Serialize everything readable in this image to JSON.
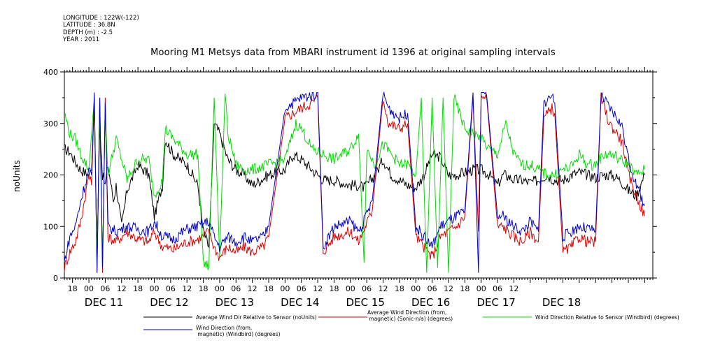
{
  "header": {
    "longitude": "LONGITUDE : 122W(-122)",
    "latitude": "LATITUDE : 36.8N",
    "depth": "DEPTH (m) : -2.5",
    "year": "YEAR : 2011"
  },
  "chart_data": {
    "type": "line",
    "title": "Mooring M1 Metsys data from MBARI instrument id 1396 at original sampling intervals",
    "ylabel": "noUnits",
    "xlabel": "",
    "ylim": [
      0,
      400
    ],
    "yticks": [
      0,
      100,
      200,
      300,
      400
    ],
    "xlim_hours": [
      -9,
      207
    ],
    "hour_ticks": [
      "18",
      "00",
      "06",
      "12",
      "18",
      "00",
      "06",
      "12",
      "18",
      "00",
      "06",
      "12",
      "18",
      "00",
      "06",
      "12",
      "18",
      "00",
      "06",
      "12",
      "18",
      "00",
      "06",
      "12",
      "18",
      "00",
      "06",
      "12"
    ],
    "day_labels": [
      "DEC 11",
      "DEC 12",
      "DEC 13",
      "DEC 14",
      "DEC 15",
      "DEC 16",
      "DEC 17",
      "DEC 18"
    ],
    "grid": false,
    "legend_placement": "bottom",
    "series": [
      {
        "name": "Average Wind Dir Relative to Sensor (noUnits)",
        "color": "#000000",
        "values": [
          [
            -9,
            250
          ],
          [
            -7,
            245
          ],
          [
            -5,
            225
          ],
          [
            -3,
            210
          ],
          [
            0,
            200
          ],
          [
            1,
            210
          ],
          [
            2,
            340
          ],
          [
            3,
            40
          ],
          [
            4,
            300
          ],
          [
            5,
            200
          ],
          [
            6,
            180
          ],
          [
            7,
            220
          ],
          [
            9,
            150
          ],
          [
            10,
            180
          ],
          [
            12,
            100
          ],
          [
            14,
            170
          ],
          [
            18,
            220
          ],
          [
            22,
            200
          ],
          [
            24,
            120
          ],
          [
            27,
            180
          ],
          [
            28,
            270
          ],
          [
            31,
            240
          ],
          [
            36,
            220
          ],
          [
            40,
            180
          ],
          [
            42,
            90
          ],
          [
            44,
            60
          ],
          [
            46,
            300
          ],
          [
            48,
            280
          ],
          [
            51,
            230
          ],
          [
            54,
            210
          ],
          [
            57,
            200
          ],
          [
            60,
            180
          ],
          [
            66,
            200
          ],
          [
            72,
            210
          ],
          [
            75,
            240
          ],
          [
            78,
            230
          ],
          [
            82,
            210
          ],
          [
            86,
            190
          ],
          [
            90,
            190
          ],
          [
            96,
            180
          ],
          [
            99,
            180
          ],
          [
            101,
            175
          ],
          [
            102,
            180
          ],
          [
            105,
            200
          ],
          [
            108,
            230
          ],
          [
            111,
            200
          ],
          [
            114,
            190
          ],
          [
            117,
            180
          ],
          [
            120,
            175
          ],
          [
            123,
            200
          ],
          [
            126,
            240
          ],
          [
            129,
            235
          ],
          [
            132,
            200
          ],
          [
            135,
            200
          ],
          [
            138,
            205
          ],
          [
            141,
            210
          ],
          [
            144,
            210
          ],
          [
            147,
            200
          ],
          [
            150,
            180
          ],
          [
            152,
            200
          ],
          [
            153,
            200
          ],
          [
            156,
            190
          ],
          [
            159,
            190
          ],
          [
            162,
            185
          ],
          [
            165,
            190
          ],
          [
            168,
            200
          ],
          [
            171,
            190
          ],
          [
            174,
            190
          ],
          [
            177,
            200
          ],
          [
            180,
            205
          ],
          [
            183,
            200
          ],
          [
            186,
            195
          ],
          [
            189,
            200
          ],
          [
            192,
            200
          ],
          [
            195,
            190
          ],
          [
            198,
            170
          ],
          [
            201,
            160
          ],
          [
            204,
            200
          ]
        ]
      },
      {
        "name": "Average Wind Direction (from, magnetic) (Sonic-n/a) (degrees)",
        "color": "#dd0000",
        "values": [
          [
            -9,
            20
          ],
          [
            -7,
            50
          ],
          [
            -5,
            70
          ],
          [
            -3,
            110
          ],
          [
            0,
            200
          ],
          [
            1,
            180
          ],
          [
            2,
            350
          ],
          [
            3,
            10
          ],
          [
            4,
            350
          ],
          [
            5,
            10
          ],
          [
            6,
            350
          ],
          [
            7,
            80
          ],
          [
            10,
            70
          ],
          [
            14,
            90
          ],
          [
            18,
            75
          ],
          [
            22,
            70
          ],
          [
            24,
            90
          ],
          [
            27,
            60
          ],
          [
            28,
            60
          ],
          [
            31,
            55
          ],
          [
            36,
            70
          ],
          [
            40,
            75
          ],
          [
            44,
            90
          ],
          [
            46,
            60
          ],
          [
            48,
            40
          ],
          [
            51,
            60
          ],
          [
            54,
            50
          ],
          [
            57,
            60
          ],
          [
            60,
            50
          ],
          [
            64,
            60
          ],
          [
            66,
            80
          ],
          [
            72,
            310
          ],
          [
            78,
            330
          ],
          [
            82,
            340
          ],
          [
            84,
            350
          ],
          [
            86,
            50
          ],
          [
            90,
            80
          ],
          [
            96,
            90
          ],
          [
            99,
            70
          ],
          [
            101,
            95
          ],
          [
            104,
            130
          ],
          [
            108,
            350
          ],
          [
            110,
            300
          ],
          [
            114,
            290
          ],
          [
            117,
            300
          ],
          [
            120,
            80
          ],
          [
            123,
            60
          ],
          [
            126,
            40
          ],
          [
            129,
            80
          ],
          [
            132,
            90
          ],
          [
            135,
            100
          ],
          [
            138,
            120
          ],
          [
            141,
            350
          ],
          [
            143,
            90
          ],
          [
            144,
            350
          ],
          [
            146,
            350
          ],
          [
            150,
            100
          ],
          [
            152,
            100
          ],
          [
            156,
            80
          ],
          [
            159,
            70
          ],
          [
            162,
            90
          ],
          [
            165,
            70
          ],
          [
            167,
            310
          ],
          [
            170,
            330
          ],
          [
            171,
            320
          ],
          [
            174,
            50
          ],
          [
            177,
            60
          ],
          [
            180,
            80
          ],
          [
            183,
            70
          ],
          [
            186,
            70
          ],
          [
            188,
            350
          ],
          [
            191,
            300
          ],
          [
            194,
            280
          ],
          [
            196,
            260
          ],
          [
            198,
            200
          ],
          [
            201,
            160
          ],
          [
            204,
            120
          ]
        ]
      },
      {
        "name": "Wind Direction Relative to Sensor (Windbird) (degrees)",
        "color": "#00dd00",
        "values": [
          [
            -9,
            320
          ],
          [
            -7,
            280
          ],
          [
            -5,
            270
          ],
          [
            -3,
            240
          ],
          [
            0,
            210
          ],
          [
            2,
            350
          ],
          [
            3,
            30
          ],
          [
            4,
            330
          ],
          [
            5,
            40
          ],
          [
            6,
            320
          ],
          [
            7,
            200
          ],
          [
            10,
            270
          ],
          [
            14,
            190
          ],
          [
            18,
            230
          ],
          [
            22,
            230
          ],
          [
            24,
            160
          ],
          [
            27,
            190
          ],
          [
            28,
            290
          ],
          [
            31,
            270
          ],
          [
            36,
            240
          ],
          [
            40,
            240
          ],
          [
            42,
            30
          ],
          [
            44,
            20
          ],
          [
            46,
            350
          ],
          [
            48,
            40
          ],
          [
            50,
            360
          ],
          [
            51,
            280
          ],
          [
            54,
            220
          ],
          [
            57,
            210
          ],
          [
            60,
            210
          ],
          [
            66,
            220
          ],
          [
            72,
            230
          ],
          [
            76,
            300
          ],
          [
            78,
            290
          ],
          [
            82,
            250
          ],
          [
            86,
            240
          ],
          [
            90,
            230
          ],
          [
            96,
            250
          ],
          [
            99,
            280
          ],
          [
            101,
            30
          ],
          [
            102,
            250
          ],
          [
            105,
            220
          ],
          [
            108,
            260
          ],
          [
            111,
            240
          ],
          [
            114,
            220
          ],
          [
            117,
            220
          ],
          [
            120,
            200
          ],
          [
            122,
            350
          ],
          [
            124,
            10
          ],
          [
            126,
            350
          ],
          [
            128,
            20
          ],
          [
            130,
            350
          ],
          [
            132,
            10
          ],
          [
            134,
            350
          ],
          [
            136,
            320
          ],
          [
            138,
            290
          ],
          [
            141,
            280
          ],
          [
            144,
            270
          ],
          [
            147,
            250
          ],
          [
            150,
            240
          ],
          [
            153,
            300
          ],
          [
            156,
            240
          ],
          [
            159,
            220
          ],
          [
            162,
            220
          ],
          [
            165,
            210
          ],
          [
            168,
            200
          ],
          [
            171,
            200
          ],
          [
            174,
            210
          ],
          [
            177,
            215
          ],
          [
            180,
            240
          ],
          [
            183,
            220
          ],
          [
            186,
            220
          ],
          [
            189,
            240
          ],
          [
            192,
            240
          ],
          [
            195,
            230
          ],
          [
            198,
            220
          ],
          [
            201,
            200
          ],
          [
            204,
            210
          ]
        ]
      },
      {
        "name": "Wind Direction (from, magnetic) (Windbird) (degrees)",
        "color": "#0000cc",
        "values": [
          [
            -9,
            30
          ],
          [
            -7,
            80
          ],
          [
            -5,
            100
          ],
          [
            -3,
            150
          ],
          [
            0,
            210
          ],
          [
            1,
            200
          ],
          [
            2,
            360
          ],
          [
            3,
            10
          ],
          [
            4,
            350
          ],
          [
            5,
            20
          ],
          [
            6,
            340
          ],
          [
            7,
            100
          ],
          [
            10,
            90
          ],
          [
            14,
            100
          ],
          [
            18,
            95
          ],
          [
            22,
            90
          ],
          [
            24,
            110
          ],
          [
            27,
            80
          ],
          [
            28,
            80
          ],
          [
            31,
            75
          ],
          [
            36,
            95
          ],
          [
            40,
            100
          ],
          [
            44,
            110
          ],
          [
            46,
            80
          ],
          [
            48,
            60
          ],
          [
            51,
            80
          ],
          [
            54,
            70
          ],
          [
            57,
            80
          ],
          [
            60,
            70
          ],
          [
            64,
            80
          ],
          [
            66,
            100
          ],
          [
            72,
            330
          ],
          [
            78,
            350
          ],
          [
            82,
            355
          ],
          [
            84,
            360
          ],
          [
            86,
            60
          ],
          [
            90,
            100
          ],
          [
            96,
            110
          ],
          [
            99,
            90
          ],
          [
            101,
            110
          ],
          [
            104,
            150
          ],
          [
            108,
            360
          ],
          [
            110,
            330
          ],
          [
            114,
            310
          ],
          [
            117,
            320
          ],
          [
            120,
            100
          ],
          [
            123,
            80
          ],
          [
            126,
            60
          ],
          [
            129,
            100
          ],
          [
            132,
            110
          ],
          [
            135,
            120
          ],
          [
            138,
            130
          ],
          [
            141,
            360
          ],
          [
            143,
            10
          ],
          [
            144,
            360
          ],
          [
            146,
            355
          ],
          [
            150,
            120
          ],
          [
            152,
            120
          ],
          [
            156,
            100
          ],
          [
            159,
            90
          ],
          [
            162,
            110
          ],
          [
            165,
            90
          ],
          [
            167,
            340
          ],
          [
            170,
            355
          ],
          [
            171,
            340
          ],
          [
            174,
            80
          ],
          [
            177,
            90
          ],
          [
            180,
            100
          ],
          [
            183,
            95
          ],
          [
            186,
            90
          ],
          [
            188,
            355
          ],
          [
            191,
            330
          ],
          [
            194,
            310
          ],
          [
            196,
            290
          ],
          [
            198,
            230
          ],
          [
            201,
            180
          ],
          [
            204,
            140
          ]
        ]
      }
    ]
  },
  "legend": [
    {
      "label": "Average Wind Dir Relative to Sensor (noUnits)",
      "color": "#000000"
    },
    {
      "label": "Average Wind Direction (from,\n magnetic) (Sonic-n/a) (degrees)",
      "color": "#dd0000"
    },
    {
      "label": "Wind Direction Relative to Sensor (Windbird) (degrees)",
      "color": "#00dd00"
    },
    {
      "label": "Wind Direction (from,\n magnetic) (Windbird) (degrees)",
      "color": "#0000cc"
    }
  ]
}
